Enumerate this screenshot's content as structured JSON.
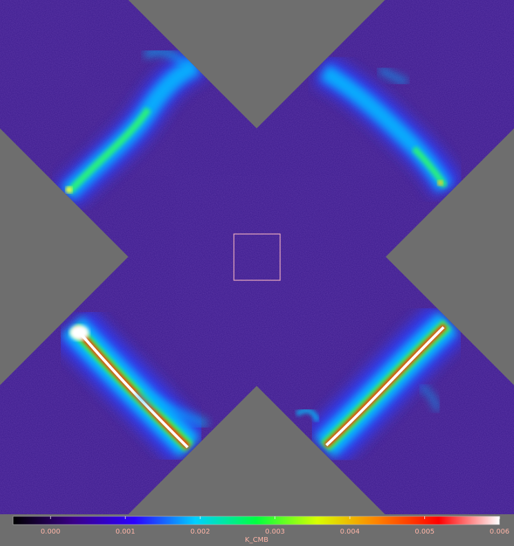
{
  "colorbar": {
    "ticks": [
      "0.000",
      "0.001",
      "0.002",
      "0.003",
      "0.004",
      "0.005",
      "0.006"
    ],
    "tick_values": [
      0,
      0.001,
      0.002,
      0.003,
      0.004,
      0.005,
      0.006
    ],
    "range": [
      -0.0005,
      0.006
    ],
    "unit": "K_CMB",
    "colormap": [
      "#000000",
      "#3a0088",
      "#2c00ff",
      "#00d0ff",
      "#00ff40",
      "#d8ff00",
      "#ff8000",
      "#ff0000",
      "#ffffff"
    ]
  },
  "colors": {
    "background": "#6e6e6e",
    "map_base": "#3a1a8c",
    "selection_box": "#f0b0c0",
    "label": "#ffb6a8"
  }
}
